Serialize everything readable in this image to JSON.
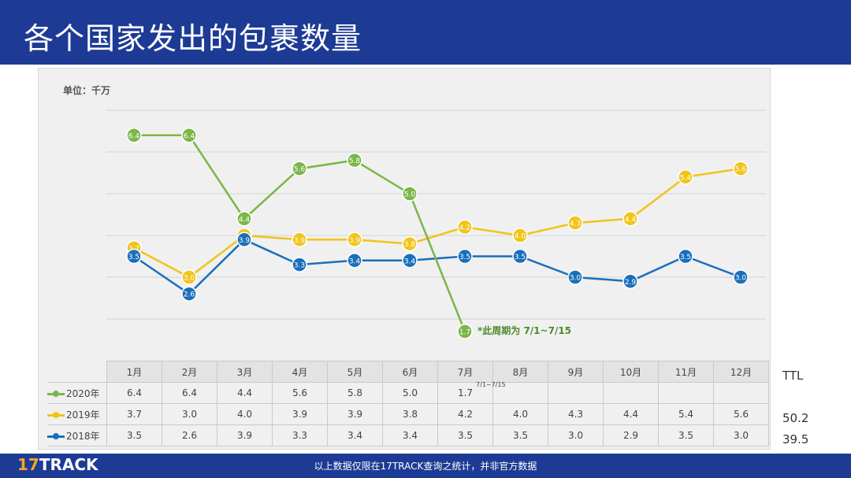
{
  "header": {
    "title": "各个国家发出的包裹数量"
  },
  "unit": "单位：千万",
  "annotation": "*此周期为 7/1~7/15",
  "table_note": "7/1~7/15",
  "ttl_label": "TTL",
  "footer": {
    "logo_num": "17",
    "logo_text": "TRACK",
    "note": "以上数据仅限在17TRACK查询之统计，并非官方数据"
  },
  "colors": {
    "2020年": "#7ab648",
    "2019年": "#f0c419",
    "2018年": "#1a6fba"
  },
  "chart_data": {
    "type": "line",
    "categories": [
      "1月",
      "2月",
      "3月",
      "4月",
      "5月",
      "6月",
      "7月",
      "8月",
      "9月",
      "10月",
      "11月",
      "12月"
    ],
    "series": [
      {
        "name": "2020年",
        "values": [
          6.4,
          6.4,
          4.4,
          5.6,
          5.8,
          5.0,
          1.7,
          null,
          null,
          null,
          null,
          null
        ],
        "ttl": ""
      },
      {
        "name": "2019年",
        "values": [
          3.7,
          3.0,
          4.0,
          3.9,
          3.9,
          3.8,
          4.2,
          4.0,
          4.3,
          4.4,
          5.4,
          5.6
        ],
        "ttl": "50.2"
      },
      {
        "name": "2018年",
        "values": [
          3.5,
          2.6,
          3.9,
          3.3,
          3.4,
          3.4,
          3.5,
          3.5,
          3.0,
          2.9,
          3.5,
          3.0
        ],
        "ttl": "39.5"
      }
    ],
    "ylim": [
      1,
      8
    ],
    "grid": true
  }
}
